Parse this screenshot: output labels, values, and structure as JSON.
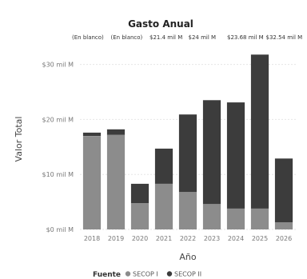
{
  "chart_data": {
    "type": "bar",
    "stacked": true,
    "title": "Gasto Anual",
    "xlabel": "Año",
    "ylabel": "Valor Total",
    "categories": [
      "2018",
      "2019",
      "2020",
      "2021",
      "2022",
      "2023",
      "2024",
      "2025",
      "2026"
    ],
    "series": [
      {
        "name": "SECOP I",
        "color": "#8c8c8c",
        "values": [
          17.0,
          17.2,
          4.8,
          8.3,
          6.8,
          4.6,
          3.8,
          3.8,
          1.3
        ]
      },
      {
        "name": "SECOP II",
        "color": "#3c3c3c",
        "values": [
          0.6,
          1.0,
          3.5,
          6.4,
          14.1,
          18.9,
          19.3,
          28.0,
          11.6
        ]
      }
    ],
    "top_labels": [
      "(En blanco)",
      "(En blanco)",
      "$21.4 mil M",
      "$24 mil M",
      "$23.68 mil M",
      "$32.54 mil M"
    ],
    "y_ticks": [
      {
        "value": 0,
        "label": "$0 mil M"
      },
      {
        "value": 10,
        "label": "$10 mil M"
      },
      {
        "value": 20,
        "label": "$20 mil M"
      },
      {
        "value": 30,
        "label": "$30 mil M"
      }
    ],
    "ylim": [
      0,
      33
    ],
    "grid": true,
    "legend": {
      "title": "Fuente",
      "position": "bottom-center"
    }
  }
}
